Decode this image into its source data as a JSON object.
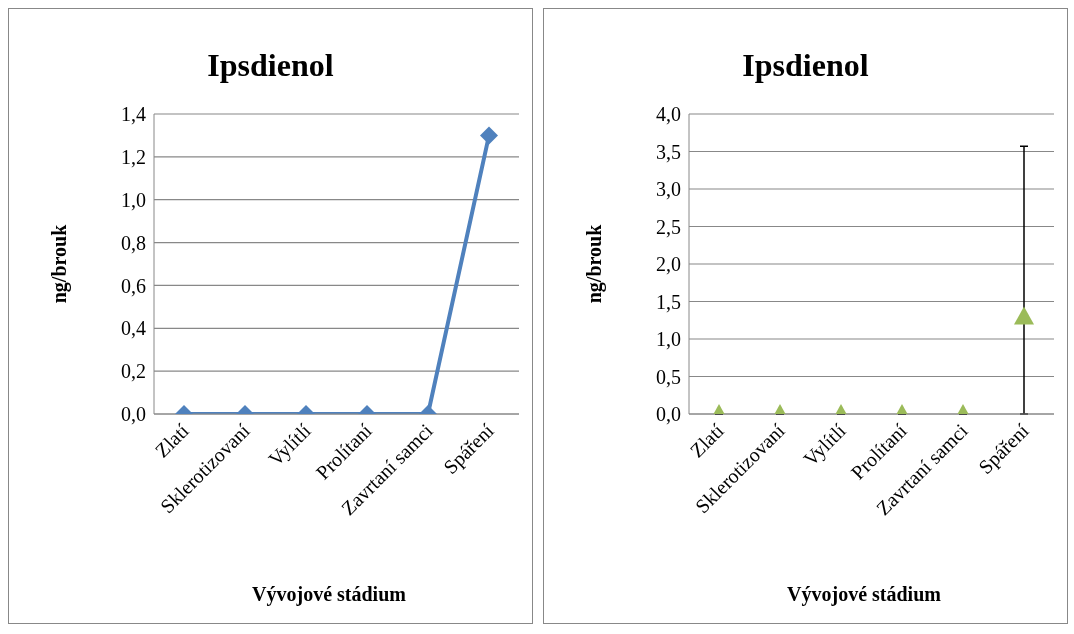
{
  "chart_data": [
    {
      "type": "line",
      "title": "Ipsdienol",
      "xlabel": "Vývojové stádium",
      "ylabel": "ng/brouk",
      "categories": [
        "Zlatí",
        "Sklerotizovaní",
        "Vylítlí",
        "Prolítaní",
        "Zavrtaní samci",
        "Spáření"
      ],
      "series": [
        {
          "color": "#4f81bd",
          "values": [
            0,
            0,
            0,
            0,
            0,
            1.3
          ]
        }
      ],
      "ylim": [
        0,
        1.4
      ],
      "yticks": [
        {
          "value": 0,
          "label": "0,0"
        },
        {
          "value": 0.2,
          "label": "0,2"
        },
        {
          "value": 0.4,
          "label": "0,4"
        },
        {
          "value": 0.6,
          "label": "0,6"
        },
        {
          "value": 0.8,
          "label": "0,8"
        },
        {
          "value": 1.0,
          "label": "1,0"
        },
        {
          "value": 1.2,
          "label": "1,2"
        },
        {
          "value": 1.4,
          "label": "1,4"
        }
      ],
      "grid": "y",
      "marker": "diamond",
      "line_style": "solid"
    },
    {
      "type": "scatter",
      "title": "Ipsdienol",
      "xlabel": "Vývojové stádium",
      "ylabel": "ng/brouk",
      "categories": [
        "Zlatí",
        "Sklerotizovaní",
        "Vylítlí",
        "Prolítaní",
        "Zavrtaní samci",
        "Spáření"
      ],
      "series": [
        {
          "color": "#9bbb59",
          "values": [
            0,
            0,
            0,
            0,
            0,
            1.3
          ],
          "errors": [
            null,
            null,
            null,
            null,
            null,
            [
              0,
              3.57
            ]
          ]
        }
      ],
      "ylim": [
        0,
        4.0
      ],
      "yticks": [
        {
          "value": 0,
          "label": "0,0"
        },
        {
          "value": 0.5,
          "label": "0,5"
        },
        {
          "value": 1.0,
          "label": "1,0"
        },
        {
          "value": 1.5,
          "label": "1,5"
        },
        {
          "value": 2.0,
          "label": "2,0"
        },
        {
          "value": 2.5,
          "label": "2,5"
        },
        {
          "value": 3.0,
          "label": "3,0"
        },
        {
          "value": 3.5,
          "label": "3,5"
        },
        {
          "value": 4.0,
          "label": "4,0"
        }
      ],
      "grid": "y",
      "marker": "triangle"
    }
  ]
}
